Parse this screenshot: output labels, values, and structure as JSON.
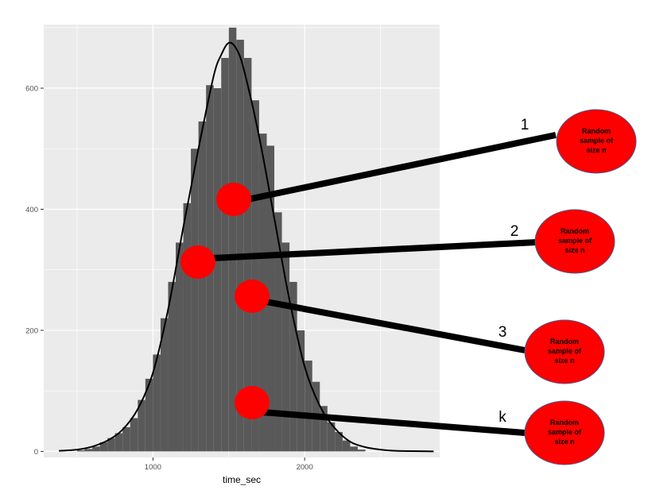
{
  "chart_data": {
    "type": "bar",
    "subtype": "histogram-with-density",
    "xlabel": "time_sec",
    "ylabel": "",
    "xlim": [
      280,
      2890
    ],
    "ylim": [
      -10,
      705
    ],
    "x_ticks": [
      1000,
      2000
    ],
    "x_tick_labels": [
      "1000",
      "2000"
    ],
    "y_ticks": [
      0,
      200,
      400,
      600
    ],
    "y_tick_labels": [
      "0",
      "200",
      "400",
      "600"
    ],
    "grid": true,
    "legend": "none",
    "panel_color": "#ebebeb",
    "bar_color": "#595959",
    "bin_width": 50,
    "bins": [
      {
        "x": 525,
        "count": 2
      },
      {
        "x": 575,
        "count": 4
      },
      {
        "x": 625,
        "count": 8
      },
      {
        "x": 675,
        "count": 15
      },
      {
        "x": 725,
        "count": 22
      },
      {
        "x": 775,
        "count": 30
      },
      {
        "x": 825,
        "count": 40
      },
      {
        "x": 875,
        "count": 55
      },
      {
        "x": 925,
        "count": 85
      },
      {
        "x": 975,
        "count": 120
      },
      {
        "x": 1025,
        "count": 160
      },
      {
        "x": 1075,
        "count": 220
      },
      {
        "x": 1125,
        "count": 280
      },
      {
        "x": 1175,
        "count": 345
      },
      {
        "x": 1225,
        "count": 410
      },
      {
        "x": 1275,
        "count": 500
      },
      {
        "x": 1325,
        "count": 545
      },
      {
        "x": 1375,
        "count": 605
      },
      {
        "x": 1425,
        "count": 600
      },
      {
        "x": 1475,
        "count": 650
      },
      {
        "x": 1525,
        "count": 700
      },
      {
        "x": 1575,
        "count": 680
      },
      {
        "x": 1625,
        "count": 650
      },
      {
        "x": 1675,
        "count": 580
      },
      {
        "x": 1725,
        "count": 525
      },
      {
        "x": 1775,
        "count": 505
      },
      {
        "x": 1825,
        "count": 395
      },
      {
        "x": 1875,
        "count": 345
      },
      {
        "x": 1925,
        "count": 280
      },
      {
        "x": 1975,
        "count": 200
      },
      {
        "x": 2025,
        "count": 150
      },
      {
        "x": 2075,
        "count": 115
      },
      {
        "x": 2125,
        "count": 75
      },
      {
        "x": 2175,
        "count": 48
      },
      {
        "x": 2225,
        "count": 32
      },
      {
        "x": 2275,
        "count": 18
      },
      {
        "x": 2325,
        "count": 8
      },
      {
        "x": 2375,
        "count": 3
      }
    ],
    "density": {
      "x": [
        380,
        500,
        600,
        700,
        800,
        900,
        1000,
        1100,
        1200,
        1300,
        1400,
        1450,
        1500,
        1550,
        1600,
        1700,
        1800,
        1900,
        2000,
        2100,
        2200,
        2300,
        2400,
        2500,
        2600,
        2700,
        2850
      ],
      "y": [
        1,
        3,
        8,
        18,
        36,
        70,
        130,
        235,
        370,
        500,
        620,
        655,
        675,
        665,
        630,
        520,
        385,
        250,
        140,
        75,
        38,
        16,
        7,
        3,
        1,
        0.5,
        0
      ]
    }
  },
  "annotations": {
    "sample_text": "Random\nsample of\nsize n",
    "samples": [
      {
        "id": "1",
        "label": "1",
        "text": "Random\nsample of\nsize n"
      },
      {
        "id": "2",
        "label": "2",
        "text": "Random\nsample of\nsize n"
      },
      {
        "id": "3",
        "label": "3",
        "text": "Random\nsample of\nsize n"
      },
      {
        "id": "k",
        "label": "k",
        "text": "Random\nsample of\nsize n"
      }
    ],
    "color": "#ff0000"
  }
}
